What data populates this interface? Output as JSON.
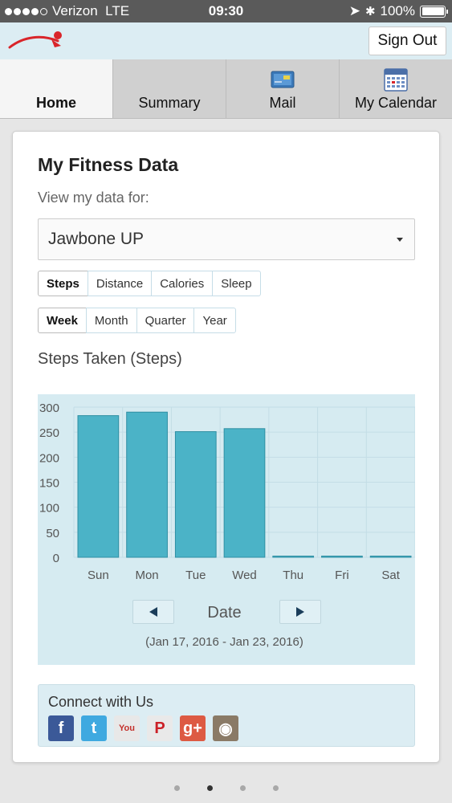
{
  "status_bar": {
    "carrier": "Verizon",
    "network": "LTE",
    "time": "09:30",
    "battery": "100%"
  },
  "header": {
    "sign_out_label": "Sign Out"
  },
  "tabs": [
    {
      "label": "Home",
      "active": true
    },
    {
      "label": "Summary",
      "active": false
    },
    {
      "label": "Mail",
      "active": false,
      "icon": "mail-icon"
    },
    {
      "label": "My Calendar",
      "active": false,
      "icon": "calendar-icon"
    }
  ],
  "card": {
    "title": "My Fitness Data",
    "view_label": "View my data for:",
    "device_selected": "Jawbone UP",
    "metrics": [
      "Steps",
      "Distance",
      "Calories",
      "Sleep"
    ],
    "metric_selected": "Steps",
    "periods": [
      "Week",
      "Month",
      "Quarter",
      "Year"
    ],
    "period_selected": "Week",
    "chart_title": "Steps Taken (Steps)",
    "date_label": "Date",
    "date_range": "(Jan 17, 2016 - Jan 23, 2016)"
  },
  "chart_data": {
    "type": "bar",
    "categories": [
      "Sun",
      "Mon",
      "Tue",
      "Wed",
      "Thu",
      "Fri",
      "Sat"
    ],
    "values": [
      283,
      290,
      251,
      257,
      0,
      0,
      0
    ],
    "title": "Steps Taken (Steps)",
    "xlabel": "Date",
    "ylabel": "",
    "ylim": [
      0,
      300
    ],
    "yticks": [
      0,
      50,
      100,
      150,
      200,
      250,
      300
    ],
    "grid": true,
    "legend": "none",
    "bar_color": "#4bb3c7"
  },
  "connect": {
    "title": "Connect with Us",
    "socials": [
      {
        "name": "facebook-icon",
        "glyph": "f",
        "color": "#3b5998"
      },
      {
        "name": "twitter-icon",
        "glyph": "t",
        "color": "#3fa9e0"
      },
      {
        "name": "youtube-icon",
        "glyph": "You",
        "color": "#e8e8e8"
      },
      {
        "name": "pinterest-icon",
        "glyph": "P",
        "color": "#e9e9e9"
      },
      {
        "name": "google-plus-icon",
        "glyph": "g+",
        "color": "#dd5a43"
      },
      {
        "name": "instagram-icon",
        "glyph": "◉",
        "color": "#8a7a66"
      }
    ]
  },
  "pager": {
    "count": 4,
    "active_index": 1
  },
  "colors": {
    "header_bg": "#dcedf3",
    "chart_bg": "#d6ebf1",
    "bar": "#4bb3c7",
    "brand_red": "#d9252a"
  }
}
